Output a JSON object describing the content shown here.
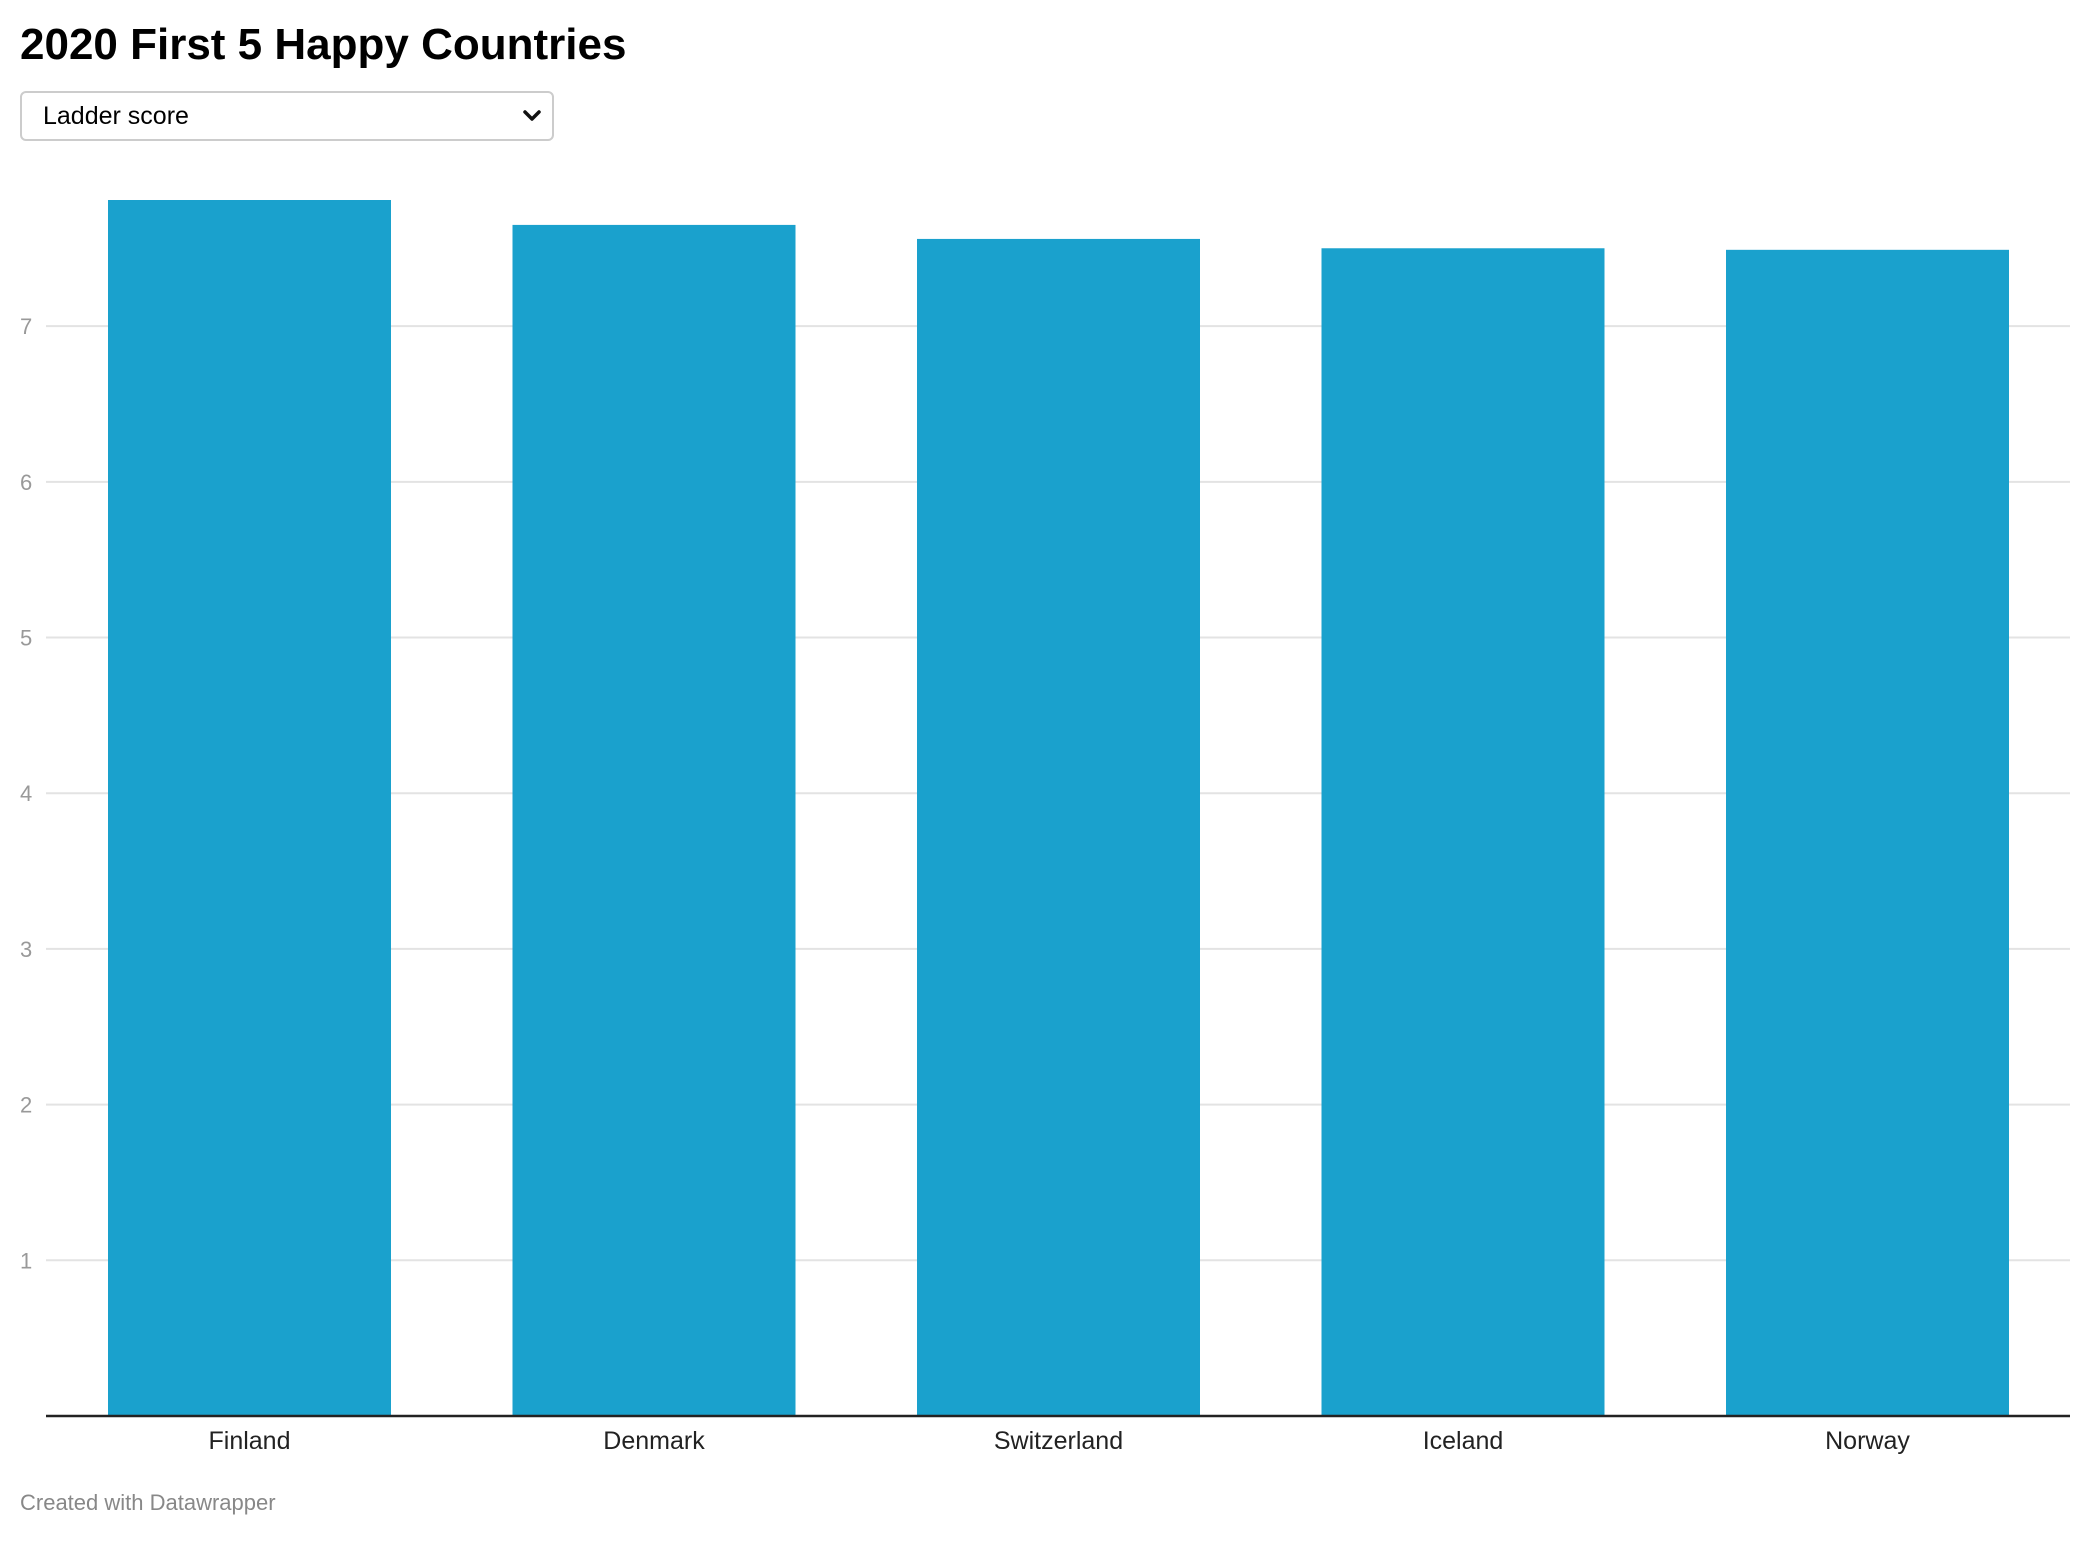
{
  "colors": {
    "bar": "#1aa1cd",
    "grid": "#e3e3e3",
    "axis": "#222222"
  },
  "selector": {
    "selected": "Ladder score",
    "icon": "chevron-down-icon"
  },
  "footer": {
    "credit": "Created with Datawrapper"
  },
  "chart_data": {
    "type": "bar",
    "title": "2020 First 5 Happy Countries",
    "xlabel": "",
    "ylabel": "",
    "categories": [
      "Finland",
      "Denmark",
      "Switzerland",
      "Iceland",
      "Norway"
    ],
    "values": [
      7.81,
      7.65,
      7.56,
      7.5,
      7.49
    ],
    "yticks": [
      1,
      2,
      3,
      4,
      5,
      6,
      7
    ],
    "ylim": [
      0,
      7.81
    ],
    "grid": true,
    "legend": "none"
  }
}
